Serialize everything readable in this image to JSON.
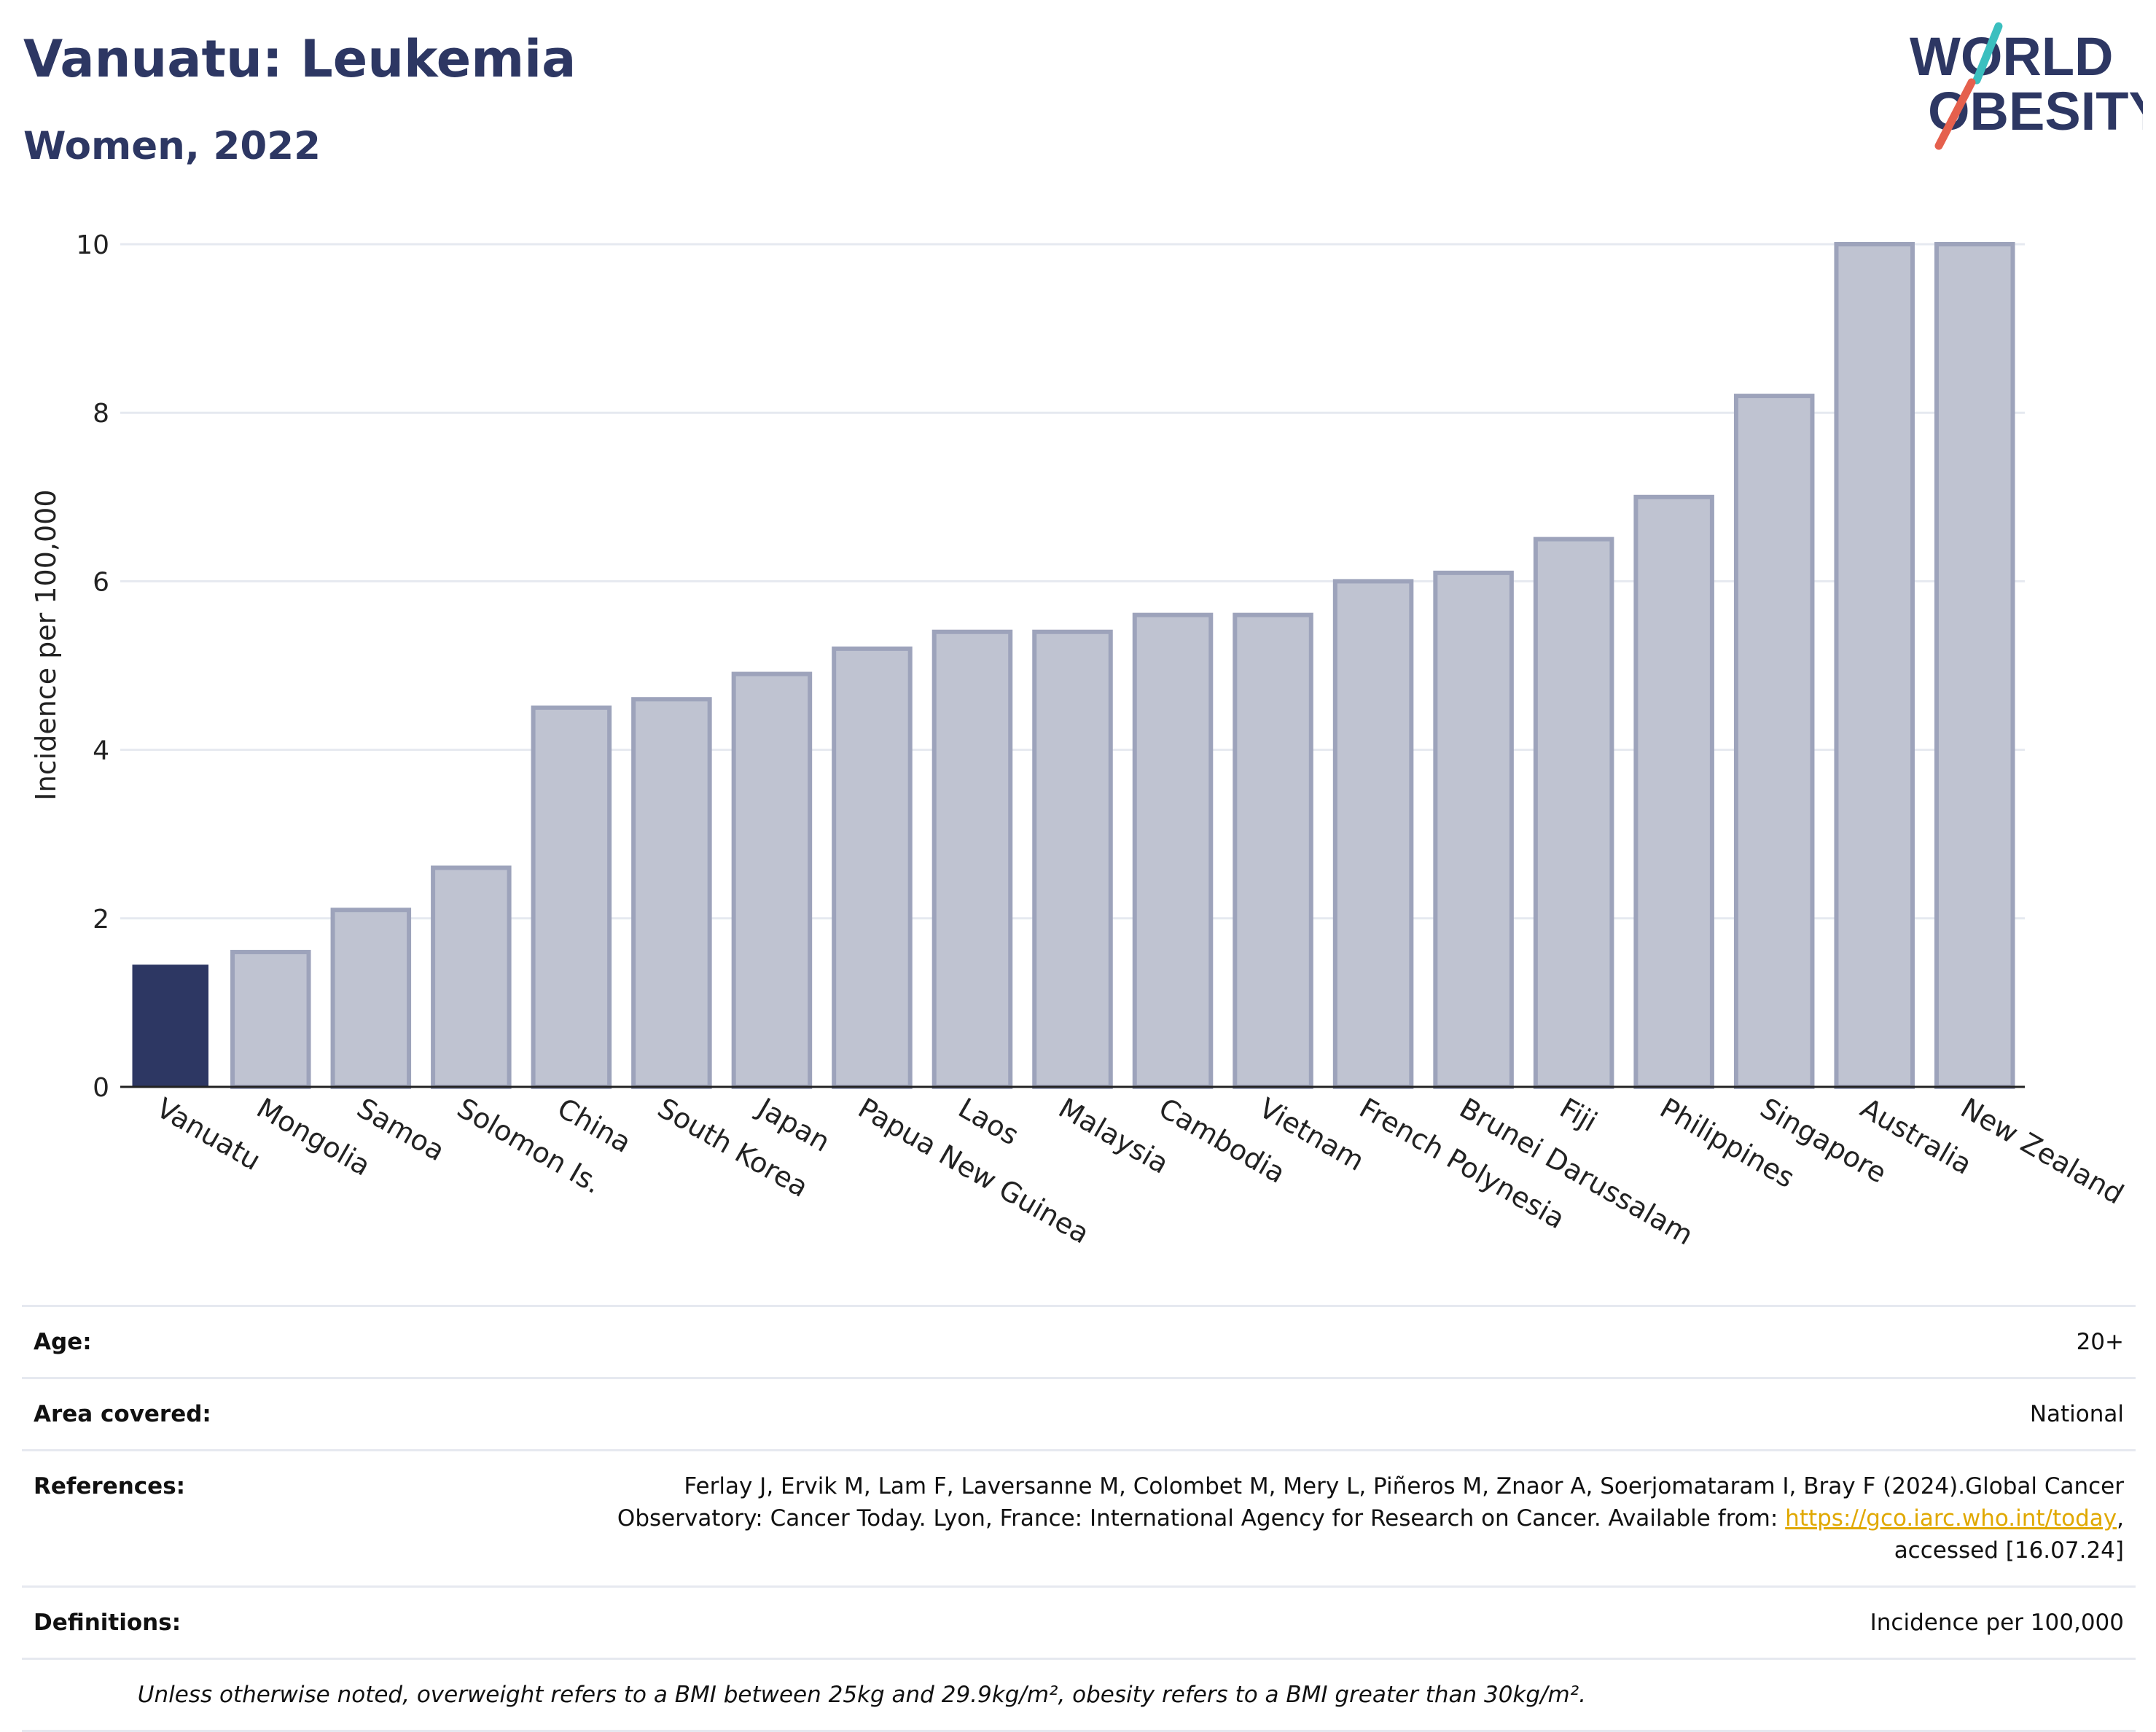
{
  "header": {
    "title": "Vanuatu: Leukemia",
    "subtitle": "Women, 2022"
  },
  "logo": {
    "line1": "WORLD",
    "line2": "OBESITY",
    "colors": {
      "text": "#2d3763",
      "teal": "#3bbfbf",
      "coral": "#e5604d"
    }
  },
  "chart_data": {
    "type": "bar",
    "categories": [
      "Vanuatu",
      "Mongolia",
      "Samoa",
      "Solomon Is.",
      "China",
      "South Korea",
      "Japan",
      "Papua New Guinea",
      "Laos",
      "Malaysia",
      "Cambodia",
      "Vietnam",
      "French Polynesia",
      "Brunei Darussalam",
      "Fiji",
      "Philippines",
      "Singapore",
      "Australia",
      "New Zealand"
    ],
    "values": [
      1.45,
      1.6,
      2.1,
      2.6,
      4.5,
      4.6,
      4.9,
      5.2,
      5.4,
      5.4,
      5.6,
      5.6,
      6.0,
      6.1,
      6.5,
      7.0,
      8.2,
      10.0,
      10.0
    ],
    "highlight": "Vanuatu",
    "ylabel": "Incidence per 100,000",
    "xlabel": "",
    "ylim": [
      0,
      10
    ],
    "yticks": [
      0,
      2,
      4,
      6,
      8,
      10
    ],
    "grid": true,
    "colors": {
      "highlight": "#2d3763",
      "bar_fill": "#bfc3d1",
      "bar_stroke": "#9da3bb",
      "grid": "#e6e9f0",
      "axis": "#222222"
    }
  },
  "meta": {
    "age": {
      "label": "Age:",
      "value": "20+"
    },
    "area": {
      "label": "Area covered:",
      "value": "National"
    },
    "references": {
      "label": "References:",
      "text_before": "Ferlay J, Ervik M, Lam F, Laversanne M, Colombet M, Mery L, Piñeros M, Znaor A, Soerjomataram I, Bray F (2024).Global Cancer Observatory: Cancer Today. Lyon, France: International Agency for Research on Cancer. Available from: ",
      "link": "https://gco.iarc.who.int/today",
      "text_after": ", accessed [16.07.24]"
    },
    "definitions": {
      "label": "Definitions:",
      "value": "Incidence per 100,000"
    },
    "note": "Unless otherwise noted, overweight refers to a BMI between 25kg and 29.9kg/m², obesity refers to a BMI greater than 30kg/m²."
  }
}
